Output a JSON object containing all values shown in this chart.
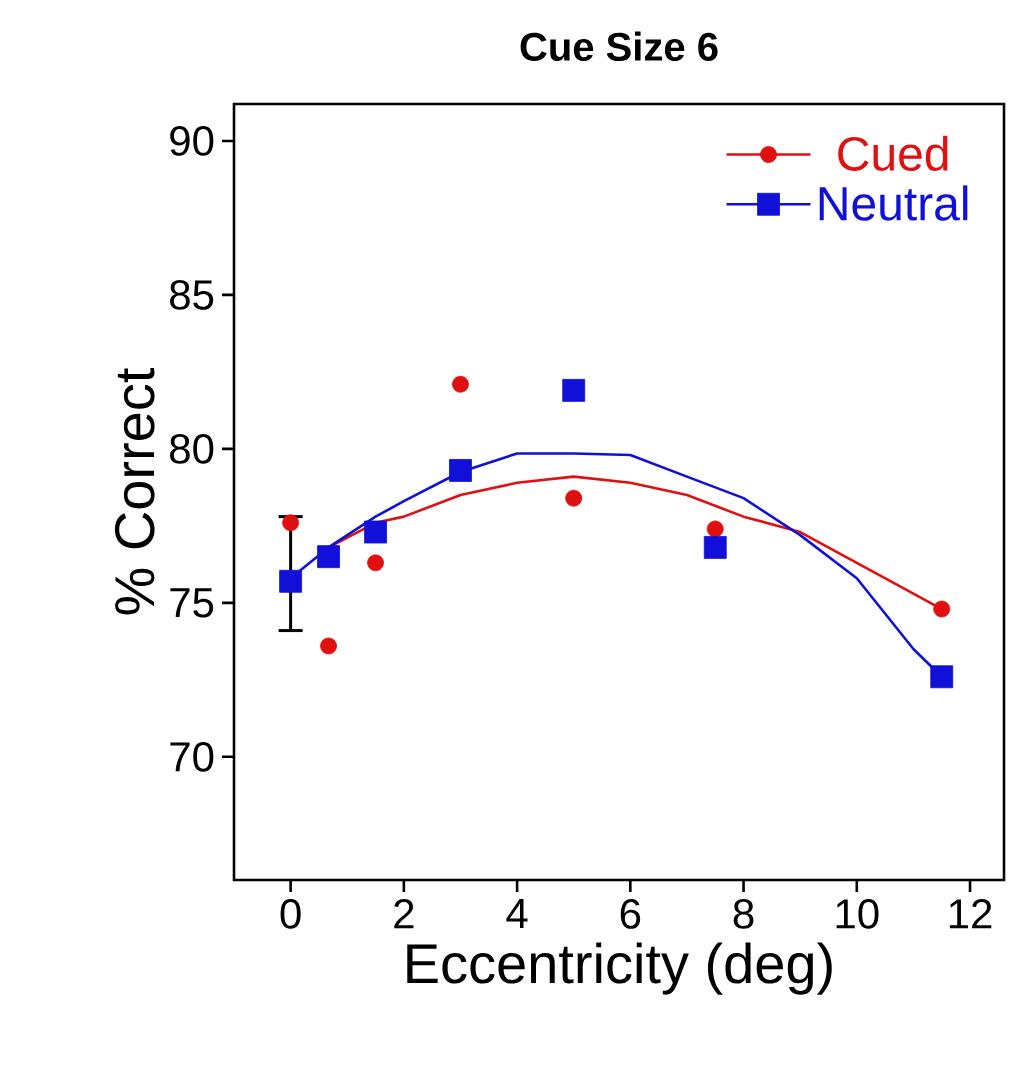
{
  "chart_data": {
    "type": "scatter",
    "title": "Cue Size 6",
    "xlabel": "Eccentricity (deg)",
    "ylabel": "% Correct",
    "xlim": [
      -1,
      12.6
    ],
    "ylim": [
      66,
      91.2
    ],
    "xticks": [
      0,
      2,
      4,
      6,
      8,
      10,
      12
    ],
    "yticks": [
      70,
      75,
      80,
      85,
      90
    ],
    "grid": false,
    "legend": "top right",
    "series": [
      {
        "name": "Cued",
        "marker": "circle",
        "color": "#e01010",
        "x": [
          0,
          0.67,
          1.5,
          3,
          5,
          7.5,
          11.5
        ],
        "values": [
          77.6,
          73.6,
          76.3,
          82.1,
          78.4,
          77.4,
          74.8
        ]
      },
      {
        "name": "Neutral",
        "marker": "square",
        "color": "#1010d8",
        "x": [
          0,
          0.67,
          1.5,
          3,
          5,
          7.5,
          11.5
        ],
        "values": [
          75.7,
          76.5,
          77.3,
          79.3,
          81.9,
          76.8,
          72.6
        ],
        "errors": [
          [
            74.1,
            77.8
          ],
          null,
          null,
          null,
          null,
          null,
          null
        ]
      },
      {
        "type": "line",
        "marker": "none",
        "color": "#e01010",
        "x": [
          0.67,
          1.5,
          2,
          3,
          4,
          5,
          6,
          7,
          8,
          9,
          10,
          11,
          11.5
        ],
        "values": [
          76.8,
          77.6,
          77.8,
          78.5,
          78.9,
          79.1,
          78.9,
          78.5,
          77.8,
          77.3,
          76.3,
          75.3,
          74.8
        ]
      },
      {
        "type": "line",
        "marker": "none",
        "color": "#1010d8",
        "x": [
          0,
          0.67,
          1.5,
          2,
          3,
          4,
          5,
          6,
          7,
          8,
          9,
          10,
          11,
          11.5
        ],
        "values": [
          75.8,
          76.8,
          77.8,
          78.3,
          79.25,
          79.85,
          79.85,
          79.8,
          79.1,
          78.4,
          77.2,
          75.8,
          73.5,
          72.6
        ]
      }
    ]
  }
}
